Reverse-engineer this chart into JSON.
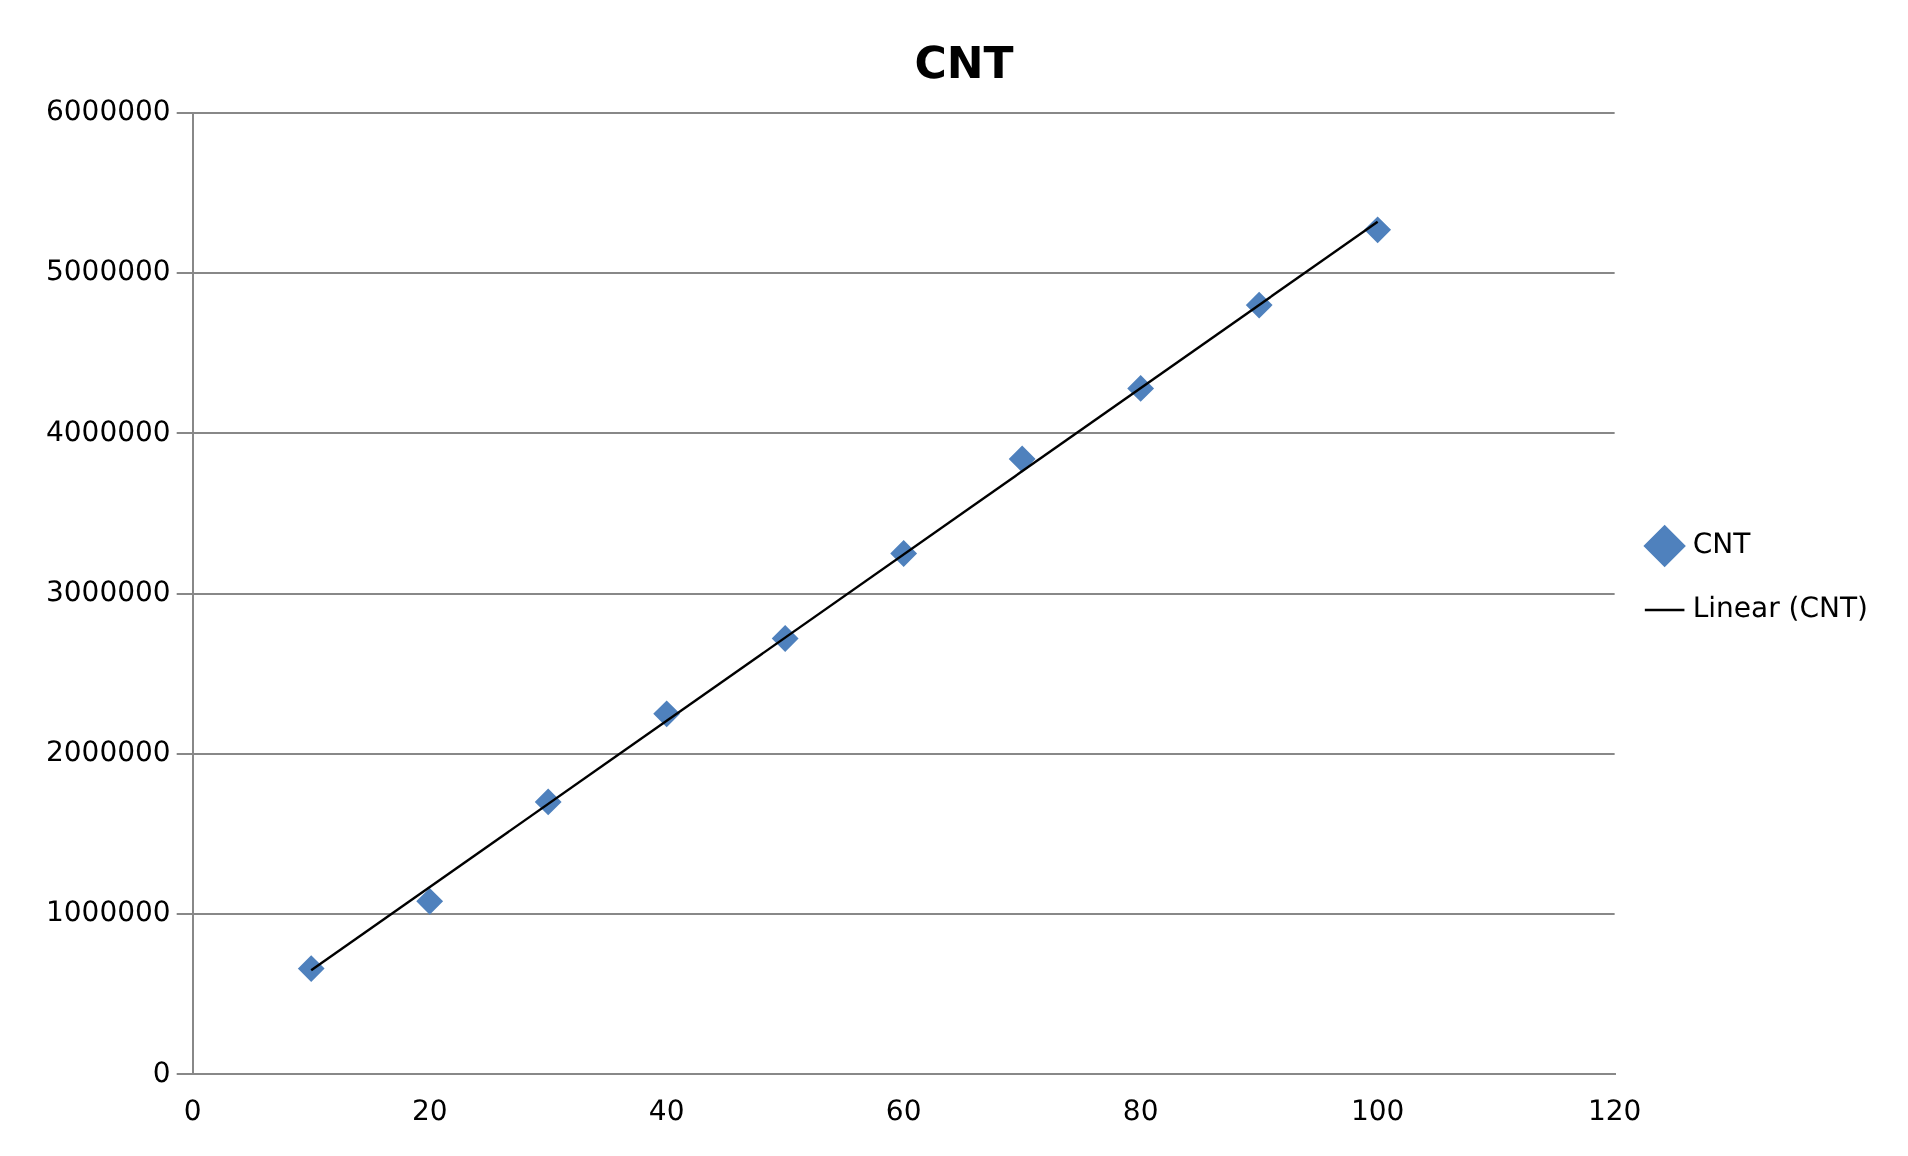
{
  "chart_data": {
    "type": "scatter",
    "title": "CNT",
    "x": [
      10,
      20,
      30,
      40,
      50,
      60,
      70,
      80,
      90,
      100
    ],
    "series": [
      {
        "name": "CNT",
        "color": "#4f81bd",
        "values": [
          660000,
          1080000,
          1700000,
          2250000,
          2720000,
          3250000,
          3840000,
          4280000,
          4800000,
          5270000
        ],
        "marker": "diamond"
      },
      {
        "name": "Linear (CNT)",
        "type": "line",
        "color": "#000000",
        "x": [
          10,
          100
        ],
        "values": [
          650000,
          5320000
        ],
        "marker": "none",
        "line_style": "solid"
      }
    ],
    "xlim": [
      0,
      120
    ],
    "xticks": [
      0,
      20,
      40,
      60,
      80,
      100,
      120
    ],
    "ylim": [
      0,
      6000000
    ],
    "yticks": [
      0,
      1000000,
      2000000,
      3000000,
      4000000,
      5000000,
      6000000
    ],
    "grid": "y",
    "legend": "right"
  }
}
